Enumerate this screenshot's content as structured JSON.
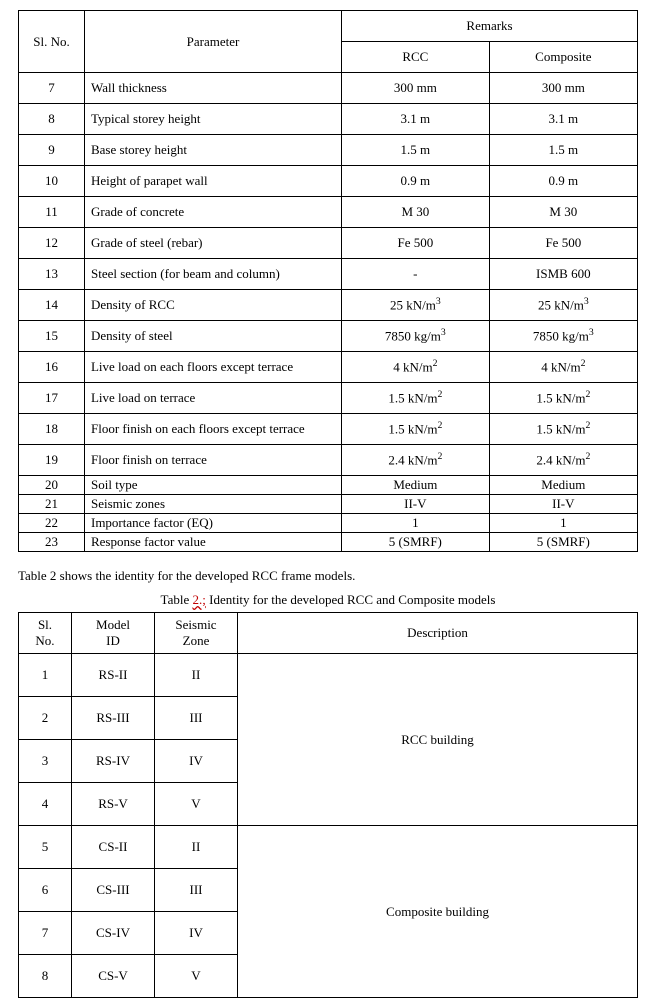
{
  "table1": {
    "headers": {
      "slno": "Sl. No.",
      "parameter": "Parameter",
      "remarks": "Remarks",
      "rcc": "RCC",
      "composite": "Composite"
    },
    "rows": [
      {
        "n": "7",
        "p": "Wall thickness",
        "r": "300 mm",
        "c": "300 mm",
        "short": false
      },
      {
        "n": "8",
        "p": "Typical storey height",
        "r": "3.1 m",
        "c": "3.1 m",
        "short": false
      },
      {
        "n": "9",
        "p": "Base storey height",
        "r": "1.5 m",
        "c": "1.5 m",
        "short": false
      },
      {
        "n": "10",
        "p": "Height of parapet wall",
        "r": "0.9 m",
        "c": "0.9 m",
        "short": false
      },
      {
        "n": "11",
        "p": "Grade of concrete",
        "r": "M 30",
        "c": "M 30",
        "short": false
      },
      {
        "n": "12",
        "p": "Grade of steel (rebar)",
        "r": "Fe 500",
        "c": "Fe 500",
        "short": false
      },
      {
        "n": "13",
        "p": "Steel section (for beam and column)",
        "r": "-",
        "c": "ISMB 600",
        "short": false
      },
      {
        "n": "14",
        "p": "Density of RCC",
        "r": "25 kN/m³",
        "c": "25 kN/m³",
        "short": false,
        "sup": true,
        "rbase": "25 kN/m",
        "cbase": "25 kN/m",
        "exp": "3"
      },
      {
        "n": "15",
        "p": "Density of steel",
        "r": "7850 kg/m³",
        "c": "7850 kg/m³",
        "short": false,
        "sup": true,
        "rbase": "7850 kg/m",
        "cbase": "7850 kg/m",
        "exp": "3"
      },
      {
        "n": "16",
        "p": "Live load on each floors except terrace",
        "r": "4 kN/m²",
        "c": "4 kN/m²",
        "short": false,
        "sup": true,
        "rbase": "4 kN/m",
        "cbase": "4 kN/m",
        "exp": "2"
      },
      {
        "n": "17",
        "p": "Live load on terrace",
        "r": "1.5 kN/m²",
        "c": "1.5 kN/m²",
        "short": false,
        "sup": true,
        "rbase": "1.5 kN/m",
        "cbase": "1.5 kN/m",
        "exp": "2"
      },
      {
        "n": "18",
        "p": "Floor finish on each floors except terrace",
        "r": "1.5 kN/m²",
        "c": "1.5 kN/m²",
        "short": false,
        "sup": true,
        "rbase": "1.5 kN/m",
        "cbase": "1.5 kN/m",
        "exp": "2"
      },
      {
        "n": "19",
        "p": "Floor finish on terrace",
        "r": "2.4 kN/m²",
        "c": "2.4 kN/m²",
        "short": false,
        "sup": true,
        "rbase": "2.4 kN/m",
        "cbase": "2.4 kN/m",
        "exp": "2"
      },
      {
        "n": "20",
        "p": "Soil type",
        "r": "Medium",
        "c": "Medium",
        "short": true
      },
      {
        "n": "21",
        "p": "Seismic zones",
        "r": "II-V",
        "c": "II-V",
        "short": true
      },
      {
        "n": "22",
        "p": "Importance factor (EQ)",
        "r": "1",
        "c": "1",
        "short": true
      },
      {
        "n": "23",
        "p": "Response factor value",
        "r": "5 (SMRF)",
        "c": "5 (SMRF)",
        "short": true
      }
    ]
  },
  "between_text": "Table 2 shows the identity for the developed RCC frame models.",
  "caption2_prefix": "Table ",
  "caption2_err": "2.;",
  "caption2_suffix": " Identity for the developed RCC and Composite models",
  "table2": {
    "headers": {
      "slno_line1": "Sl.",
      "slno_line2": "No.",
      "model_line1": "Model",
      "model_line2": "ID",
      "zone_line1": "Seismic",
      "zone_line2": "Zone",
      "description": "Description"
    },
    "groups": [
      {
        "desc": "RCC building",
        "rows": [
          {
            "n": "1",
            "id": "RS-II",
            "z": "II"
          },
          {
            "n": "2",
            "id": "RS-III",
            "z": "III"
          },
          {
            "n": "3",
            "id": "RS-IV",
            "z": "IV"
          },
          {
            "n": "4",
            "id": "RS-V",
            "z": "V"
          }
        ]
      },
      {
        "desc": "Composite building",
        "rows": [
          {
            "n": "5",
            "id": "CS-II",
            "z": "II"
          },
          {
            "n": "6",
            "id": "CS-III",
            "z": "III"
          },
          {
            "n": "7",
            "id": "CS-IV",
            "z": "IV"
          },
          {
            "n": "8",
            "id": "CS-V",
            "z": "V"
          }
        ]
      }
    ]
  }
}
